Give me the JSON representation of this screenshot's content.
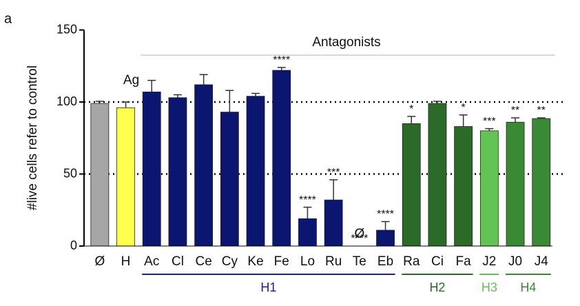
{
  "chart_data": {
    "type": "bar",
    "panel_label": "a",
    "y_label": "#live cells refer to control",
    "categories": [
      "Ø",
      "H",
      "Ac",
      "Cl",
      "Ce",
      "Cy",
      "Ke",
      "Fe",
      "Lo",
      "Ru",
      "Te",
      "Eb",
      "Ra",
      "Ci",
      "Fa",
      "J2",
      "J0",
      "J4"
    ],
    "values": [
      99,
      96,
      107,
      103,
      112,
      93,
      104,
      122,
      19,
      32,
      0,
      11,
      85,
      99,
      83,
      80,
      86,
      88.5
    ],
    "errors": [
      1.5,
      4,
      8,
      2,
      7,
      15,
      2,
      2,
      8,
      14,
      0,
      6,
      5,
      1.5,
      8,
      1.5,
      3,
      0.5
    ],
    "colors": [
      "#a6a6a6",
      "#ffff4d",
      "#0b1670",
      "#0b1670",
      "#0b1670",
      "#0b1670",
      "#0b1670",
      "#0b1670",
      "#0b1670",
      "#0b1670",
      "#0b1670",
      "#0b1670",
      "#2b6a27",
      "#2b6a27",
      "#2b6a27",
      "#62c454",
      "#3a8a34",
      "#3a8a34"
    ],
    "bar_labels": [
      null,
      null,
      null,
      null,
      null,
      null,
      null,
      "****",
      "****",
      "***",
      "****",
      "****",
      "*",
      null,
      "*",
      "***",
      "**",
      "**"
    ],
    "absent_marker": {
      "category": "Te",
      "label": "Ø"
    },
    "annotations": [
      {
        "category": "H",
        "label": "Ag"
      }
    ],
    "span_label": {
      "label": "Antagonists",
      "start": "Ac",
      "end": "J4",
      "color": "#b0b0b0"
    },
    "groups": [
      {
        "label": "H1",
        "start": "Ac",
        "end": "Eb",
        "color": "#1a2380"
      },
      {
        "label": "H2",
        "start": "Ra",
        "end": "Fa",
        "color": "#2b6a27"
      },
      {
        "label": "H3",
        "start": "J2",
        "end": "J2",
        "color": "#5cc44e"
      },
      {
        "label": "H4",
        "start": "J0",
        "end": "J4",
        "color": "#3a8a34"
      }
    ],
    "ylim": [
      0,
      150
    ],
    "yticks": [
      0,
      50,
      100,
      150
    ],
    "reference_lines": [
      50,
      100
    ]
  }
}
